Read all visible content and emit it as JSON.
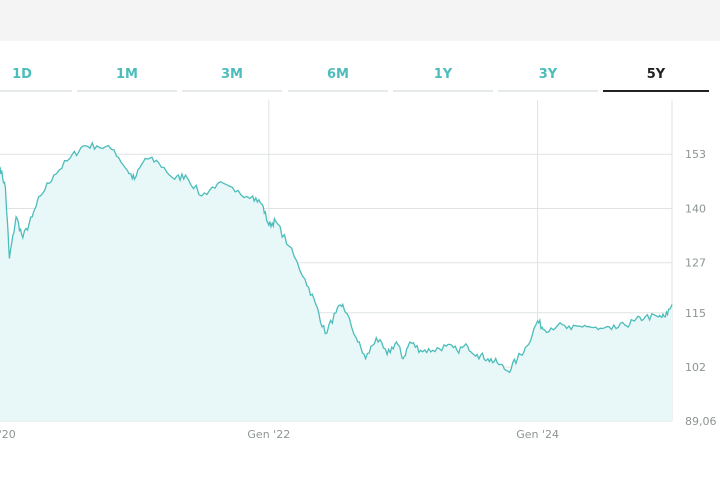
{
  "tabs": [
    {
      "label": "1D",
      "active": false
    },
    {
      "label": "1M",
      "active": false
    },
    {
      "label": "3M",
      "active": false
    },
    {
      "label": "6M",
      "active": false
    },
    {
      "label": "1Y",
      "active": false
    },
    {
      "label": "3Y",
      "active": false
    },
    {
      "label": "5Y",
      "active": true
    }
  ],
  "colors": {
    "accent": "#4cbdba",
    "fill": "#e8f7f7",
    "grid": "#dfe3e3",
    "active_tab": "#222222"
  },
  "chart_data": {
    "type": "area",
    "x_ticks": [
      {
        "label": "… '20",
        "value": 2020.0
      },
      {
        "label": "Gen '22",
        "value": 2022.0
      },
      {
        "label": "Gen '24",
        "value": 2024.0
      }
    ],
    "y_ticks": [
      "153",
      "140",
      "127",
      "115",
      "102",
      "89,06"
    ],
    "y_tick_values": [
      153,
      140,
      127,
      115,
      102,
      89.06
    ],
    "ylim": [
      89.06,
      166
    ],
    "xlim": [
      2020.0,
      2025.0
    ],
    "grid": true,
    "series": [
      {
        "x": [
          2020.0,
          2020.04,
          2020.07,
          2020.12,
          2020.17,
          2020.24,
          2020.3,
          2020.4,
          2020.52,
          2020.62,
          2020.72,
          2020.85,
          2020.95,
          2021.0,
          2021.08,
          2021.18,
          2021.3,
          2021.38,
          2021.5,
          2021.62,
          2021.75,
          2021.88,
          2021.95,
          2022.0,
          2022.05,
          2022.15,
          2022.27,
          2022.35,
          2022.42,
          2022.5,
          2022.55,
          2022.65,
          2022.72,
          2022.8,
          2022.88,
          2022.95,
          2023.0,
          2023.05,
          2023.13,
          2023.22,
          2023.32,
          2023.4,
          2023.48,
          2023.55,
          2023.63,
          2023.7,
          2023.78,
          2023.85,
          2023.92,
          2024.0,
          2024.05,
          2024.15,
          2024.25,
          2024.35,
          2024.45,
          2024.55,
          2024.65,
          2024.72,
          2024.8,
          2024.9,
          2024.95,
          2025.0
        ],
        "y": [
          150,
          145,
          128,
          138,
          133,
          138,
          143,
          148,
          152,
          155,
          155,
          154,
          149,
          147,
          152,
          151,
          147,
          148,
          143,
          146,
          144,
          143,
          141,
          136,
          137,
          131,
          123,
          117,
          110,
          115,
          117,
          109,
          104,
          109,
          105,
          108,
          104,
          108,
          106,
          106,
          107,
          106,
          107,
          105,
          104,
          103,
          101,
          104,
          107,
          113,
          111,
          112,
          111,
          112,
          111,
          111,
          112,
          113,
          114,
          114,
          114,
          117
        ]
      }
    ]
  }
}
